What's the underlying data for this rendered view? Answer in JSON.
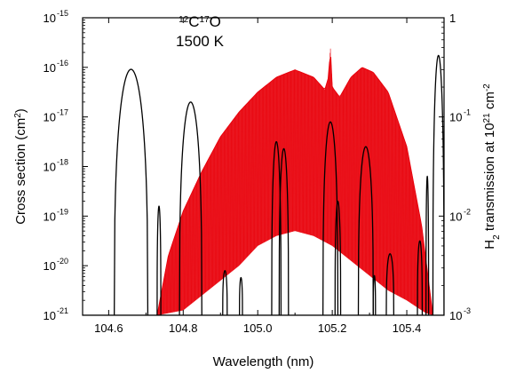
{
  "chart_data": {
    "type": "line",
    "annotation_lines": [
      {
        "parts": [
          {
            "text": "12",
            "sup": true
          },
          {
            "text": "C",
            "sup": false
          },
          {
            "text": "17",
            "sup": true
          },
          {
            "text": "O",
            "sup": false
          }
        ]
      },
      {
        "parts": [
          {
            "text": "1500 K",
            "sup": false
          }
        ]
      }
    ],
    "xlabel": "Wavelength (nm)",
    "ylabel_left": {
      "parts": [
        {
          "text": "Cross section (cm",
          "sup": false
        },
        {
          "text": "2",
          "sup": true
        },
        {
          "text": ")",
          "sup": false
        }
      ]
    },
    "ylabel_right": {
      "parts": [
        {
          "text": "H",
          "sup": false
        },
        {
          "text": "2",
          "sub": true
        },
        {
          "text": " transmission at 10",
          "sup": false
        },
        {
          "text": "21",
          "sup": true
        },
        {
          "text": " cm",
          "sup": false
        },
        {
          "text": "-2",
          "sup": true
        }
      ]
    },
    "xlim": [
      104.53,
      105.5
    ],
    "x_ticks": [
      104.6,
      104.8,
      105.0,
      105.2,
      105.4
    ],
    "x_tick_labels": [
      "104.6",
      "104.8",
      "105.0",
      "105.2",
      "105.4"
    ],
    "ylim_left_log10": [
      -21,
      -15
    ],
    "y_left_ticks": [
      -21,
      -20,
      -19,
      -18,
      -17,
      -16,
      -15
    ],
    "ylim_right_log10": [
      -3,
      0
    ],
    "y_right_ticks": [
      -3,
      -2,
      -1,
      0
    ],
    "y_right_tick_labels": [
      "10",
      "10",
      "10",
      "10"
    ],
    "y_right_tick_exponents": [
      "-3",
      "-2",
      "-1",
      ""
    ],
    "y_right_tick_plain": [
      "",
      "",
      "",
      "1"
    ],
    "colors": {
      "cross_section": "#e8000b",
      "transmission": "#000000"
    },
    "cross_section": {
      "axis": "left",
      "x_start": 104.73,
      "x_end": 105.47,
      "upper_envelope_log10": [
        [
          104.73,
          -21
        ],
        [
          104.76,
          -19.8
        ],
        [
          104.8,
          -18.9
        ],
        [
          104.85,
          -18.1
        ],
        [
          104.9,
          -17.4
        ],
        [
          104.95,
          -16.9
        ],
        [
          105.0,
          -16.5
        ],
        [
          105.05,
          -16.2
        ],
        [
          105.1,
          -16.05
        ],
        [
          105.15,
          -16.2
        ],
        [
          105.18,
          -16.45
        ],
        [
          105.19,
          -16.2
        ],
        [
          105.195,
          -15.6
        ],
        [
          105.2,
          -16.4
        ],
        [
          105.22,
          -16.6
        ],
        [
          105.25,
          -16.2
        ],
        [
          105.28,
          -16.0
        ],
        [
          105.31,
          -16.1
        ],
        [
          105.35,
          -16.5
        ],
        [
          105.4,
          -17.6
        ],
        [
          105.44,
          -19.2
        ],
        [
          105.47,
          -21
        ]
      ],
      "lower_envelope_log10": [
        [
          104.73,
          -21
        ],
        [
          104.8,
          -20.9
        ],
        [
          104.85,
          -20.6
        ],
        [
          104.9,
          -20.3
        ],
        [
          104.95,
          -20.0
        ],
        [
          105.0,
          -19.6
        ],
        [
          105.05,
          -19.4
        ],
        [
          105.1,
          -19.3
        ],
        [
          105.15,
          -19.4
        ],
        [
          105.2,
          -19.6
        ],
        [
          105.25,
          -19.9
        ],
        [
          105.3,
          -20.2
        ],
        [
          105.35,
          -20.5
        ],
        [
          105.4,
          -20.7
        ],
        [
          105.45,
          -20.95
        ],
        [
          105.47,
          -21
        ]
      ]
    },
    "transmission_peaks": {
      "axis": "right",
      "peaks": [
        {
          "center": 104.66,
          "width": 0.09,
          "peak_log10": -0.52
        },
        {
          "center": 104.735,
          "width": 0.01,
          "peak_log10": -1.9
        },
        {
          "center": 104.82,
          "width": 0.06,
          "peak_log10": -0.85
        },
        {
          "center": 104.912,
          "width": 0.012,
          "peak_log10": -2.55
        },
        {
          "center": 104.955,
          "width": 0.008,
          "peak_log10": -2.62
        },
        {
          "center": 105.05,
          "width": 0.025,
          "peak_log10": -1.25
        },
        {
          "center": 105.07,
          "width": 0.025,
          "peak_log10": -1.32
        },
        {
          "center": 105.195,
          "width": 0.04,
          "peak_log10": -1.05
        },
        {
          "center": 105.215,
          "width": 0.015,
          "peak_log10": -1.85
        },
        {
          "center": 105.29,
          "width": 0.04,
          "peak_log10": -1.3
        },
        {
          "center": 105.313,
          "width": 0.006,
          "peak_log10": -2.6
        },
        {
          "center": 105.355,
          "width": 0.02,
          "peak_log10": -2.38
        },
        {
          "center": 105.435,
          "width": 0.013,
          "peak_log10": -2.25
        },
        {
          "center": 105.455,
          "width": 0.007,
          "peak_log10": -1.6
        },
        {
          "center": 105.485,
          "width": 0.03,
          "peak_log10": -0.38
        }
      ]
    }
  }
}
